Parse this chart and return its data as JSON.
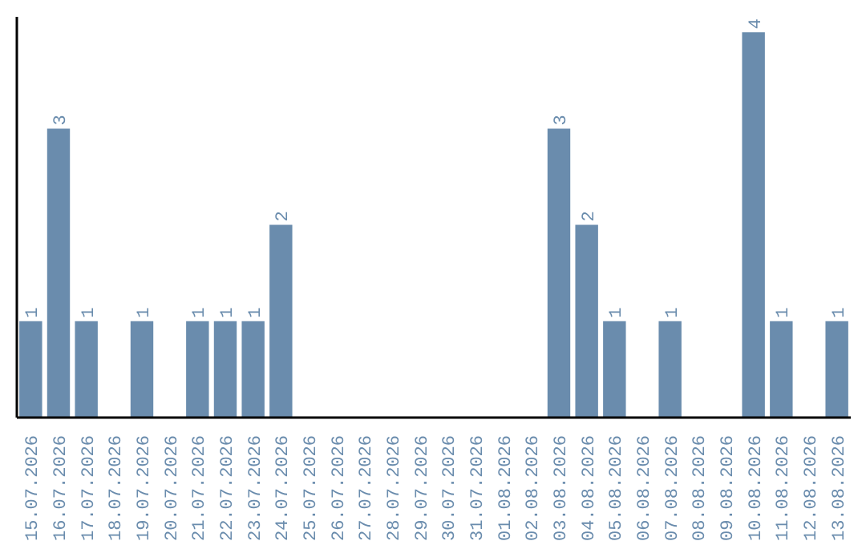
{
  "chart_data": {
    "type": "bar",
    "categories": [
      "15.07.2026",
      "16.07.2026",
      "17.07.2026",
      "18.07.2026",
      "19.07.2026",
      "20.07.2026",
      "21.07.2026",
      "22.07.2026",
      "23.07.2026",
      "24.07.2026",
      "25.07.2026",
      "26.07.2026",
      "27.07.2026",
      "28.07.2026",
      "29.07.2026",
      "30.07.2026",
      "31.07.2026",
      "01.08.2026",
      "02.08.2026",
      "03.08.2026",
      "04.08.2026",
      "05.08.2026",
      "06.08.2026",
      "07.08.2026",
      "08.08.2026",
      "09.08.2026",
      "10.08.2026",
      "11.08.2026",
      "12.08.2026",
      "13.08.2026"
    ],
    "values": [
      1,
      3,
      1,
      0,
      1,
      0,
      1,
      1,
      1,
      2,
      0,
      0,
      0,
      0,
      0,
      0,
      0,
      0,
      0,
      3,
      2,
      1,
      0,
      1,
      0,
      0,
      4,
      1,
      0,
      1
    ],
    "value_labels": [
      "1",
      "3",
      "1",
      null,
      "1",
      null,
      "1",
      "1",
      "1",
      "2",
      null,
      null,
      null,
      null,
      null,
      null,
      null,
      null,
      null,
      "3",
      "2",
      "1",
      null,
      "1",
      null,
      null,
      "4",
      "1",
      null,
      "1"
    ],
    "color": "#6a8cad",
    "grid": false
  }
}
